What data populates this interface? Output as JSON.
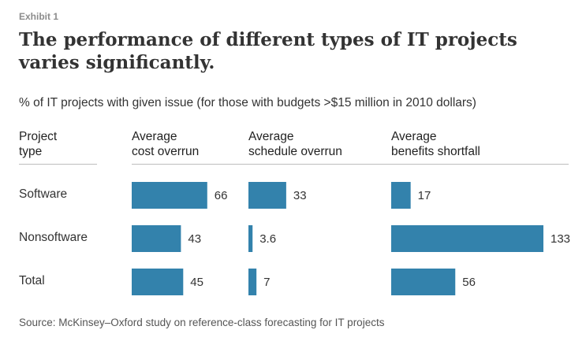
{
  "exhibit_label": "Exhibit 1",
  "title": "The performance of different types of IT projects varies significantly.",
  "subtitle": "% of IT projects with given issue (for those with budgets >$15 million in 2010 dollars)",
  "headers": {
    "project_type_line1": "Project",
    "project_type_line2": "type",
    "cost_line1": "Average",
    "cost_line2": "cost overrun",
    "schedule_line1": "Average",
    "schedule_line2": "schedule overrun",
    "benefits_line1": "Average",
    "benefits_line2": "benefits shortfall"
  },
  "source": "Source: McKinsey–Oxford study on reference-class forecasting for IT projects",
  "colors": {
    "bar": "#3382ac"
  },
  "chart_data": {
    "type": "bar",
    "orientation": "horizontal",
    "categories": [
      "Software",
      "Nonsoftware",
      "Total"
    ],
    "series": [
      {
        "name": "Average cost overrun",
        "values": [
          66,
          43,
          45
        ],
        "labels": [
          "66",
          "43",
          "45"
        ]
      },
      {
        "name": "Average schedule overrun",
        "values": [
          33,
          3.6,
          7
        ],
        "labels": [
          "33",
          "3.6",
          "7"
        ]
      },
      {
        "name": "Average benefits shortfall",
        "values": [
          17,
          133,
          56
        ],
        "labels": [
          "17",
          "133",
          "56"
        ]
      }
    ],
    "grid": false,
    "legend": "none"
  }
}
